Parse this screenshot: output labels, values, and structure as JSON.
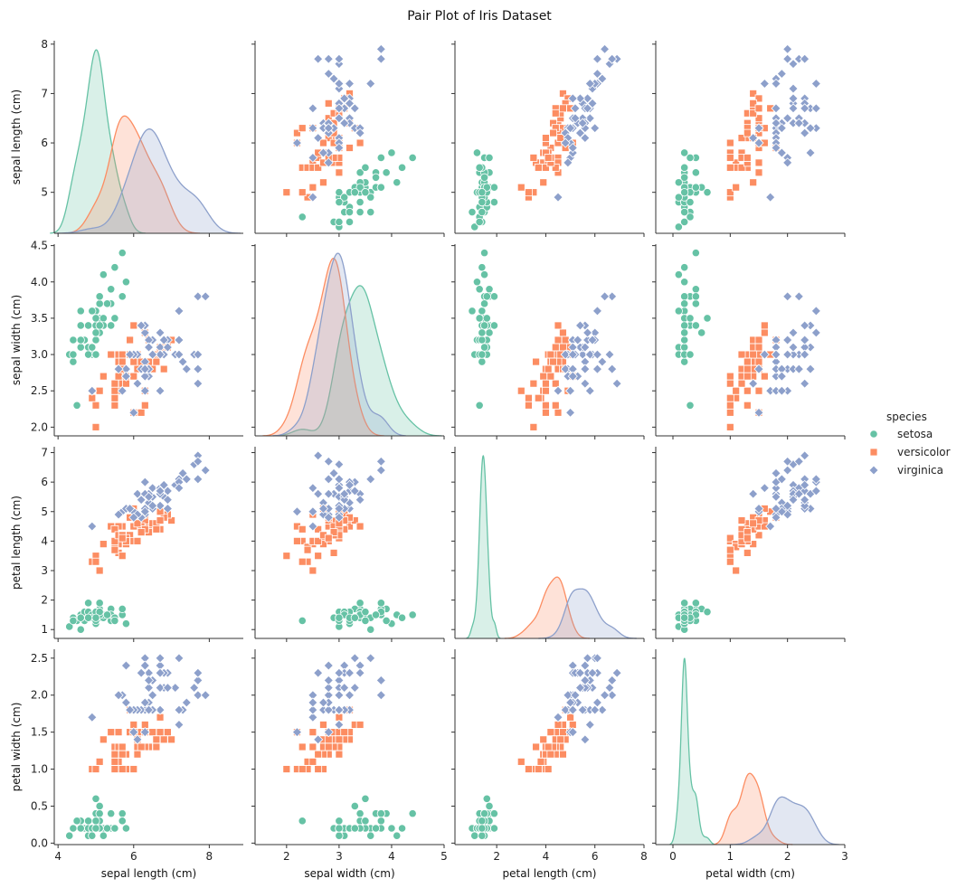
{
  "chart_data": {
    "type": "scatter",
    "title": "Pair Plot of Iris Dataset",
    "variables": [
      "sepal length (cm)",
      "sepal width (cm)",
      "petal length (cm)",
      "petal width (cm)"
    ],
    "diagonal": "kde",
    "hue": "species",
    "legend": {
      "title": "species",
      "placement": "right",
      "entries": [
        "setosa",
        "versicolor",
        "virginica"
      ]
    },
    "colors": {
      "setosa": "#66c2a5",
      "versicolor": "#fc8d62",
      "virginica": "#8da0cb"
    },
    "markers": {
      "setosa": "circle",
      "versicolor": "square",
      "virginica": "diamond"
    },
    "axes": [
      {
        "name": "sepal length (cm)",
        "lim": [
          3.9,
          8.9
        ],
        "ticks": [
          4,
          6,
          8
        ],
        "row_ticks": [
          5,
          6,
          7,
          8
        ]
      },
      {
        "name": "sepal width (cm)",
        "lim": [
          1.4,
          5.0
        ],
        "ticks": [
          2,
          3,
          4,
          5
        ],
        "row_ticks": [
          2.0,
          2.5,
          3.0,
          3.5,
          4.0,
          4.5
        ]
      },
      {
        "name": "petal length (cm)",
        "lim": [
          0.3,
          8.0
        ],
        "ticks": [
          2,
          4,
          6,
          8
        ],
        "row_ticks": [
          1,
          2,
          3,
          4,
          5,
          6,
          7
        ]
      },
      {
        "name": "petal width (cm)",
        "lim": [
          -0.3,
          3.0
        ],
        "ticks": [
          0,
          1,
          2,
          3
        ],
        "row_ticks": [
          0.0,
          0.5,
          1.0,
          1.5,
          2.0,
          2.5
        ]
      }
    ],
    "row_ylims": [
      [
        4.17,
        8.07
      ],
      [
        1.88,
        4.52
      ],
      [
        0.7,
        7.2
      ],
      [
        -0.02,
        2.62
      ]
    ],
    "series": [
      {
        "name": "setosa",
        "points": [
          [
            5.1,
            3.5,
            1.4,
            0.2
          ],
          [
            4.9,
            3.0,
            1.4,
            0.2
          ],
          [
            4.7,
            3.2,
            1.3,
            0.2
          ],
          [
            4.6,
            3.1,
            1.5,
            0.2
          ],
          [
            5.0,
            3.6,
            1.4,
            0.2
          ],
          [
            5.4,
            3.9,
            1.7,
            0.4
          ],
          [
            4.6,
            3.4,
            1.4,
            0.3
          ],
          [
            5.0,
            3.4,
            1.5,
            0.2
          ],
          [
            4.4,
            2.9,
            1.4,
            0.2
          ],
          [
            4.9,
            3.1,
            1.5,
            0.1
          ],
          [
            5.4,
            3.7,
            1.5,
            0.2
          ],
          [
            4.8,
            3.4,
            1.6,
            0.2
          ],
          [
            4.8,
            3.0,
            1.4,
            0.1
          ],
          [
            4.3,
            3.0,
            1.1,
            0.1
          ],
          [
            5.8,
            4.0,
            1.2,
            0.2
          ],
          [
            5.7,
            4.4,
            1.5,
            0.4
          ],
          [
            5.4,
            3.9,
            1.3,
            0.4
          ],
          [
            5.1,
            3.5,
            1.4,
            0.3
          ],
          [
            5.7,
            3.8,
            1.7,
            0.3
          ],
          [
            5.1,
            3.8,
            1.5,
            0.3
          ],
          [
            5.4,
            3.4,
            1.7,
            0.2
          ],
          [
            5.1,
            3.7,
            1.5,
            0.4
          ],
          [
            4.6,
            3.6,
            1.0,
            0.2
          ],
          [
            5.1,
            3.3,
            1.7,
            0.5
          ],
          [
            4.8,
            3.4,
            1.9,
            0.2
          ],
          [
            5.0,
            3.0,
            1.6,
            0.2
          ],
          [
            5.0,
            3.4,
            1.6,
            0.4
          ],
          [
            5.2,
            3.5,
            1.5,
            0.2
          ],
          [
            5.2,
            3.4,
            1.4,
            0.2
          ],
          [
            4.7,
            3.2,
            1.6,
            0.2
          ],
          [
            4.8,
            3.1,
            1.6,
            0.2
          ],
          [
            5.4,
            3.4,
            1.5,
            0.4
          ],
          [
            5.2,
            4.1,
            1.5,
            0.1
          ],
          [
            5.5,
            4.2,
            1.4,
            0.2
          ],
          [
            4.9,
            3.1,
            1.5,
            0.2
          ],
          [
            5.0,
            3.2,
            1.2,
            0.2
          ],
          [
            5.5,
            3.5,
            1.3,
            0.2
          ],
          [
            4.9,
            3.6,
            1.4,
            0.1
          ],
          [
            4.4,
            3.0,
            1.3,
            0.2
          ],
          [
            5.1,
            3.4,
            1.5,
            0.2
          ],
          [
            5.0,
            3.5,
            1.3,
            0.3
          ],
          [
            4.5,
            2.3,
            1.3,
            0.3
          ],
          [
            4.4,
            3.2,
            1.3,
            0.2
          ],
          [
            5.0,
            3.5,
            1.6,
            0.6
          ],
          [
            5.1,
            3.8,
            1.9,
            0.4
          ],
          [
            4.8,
            3.0,
            1.4,
            0.3
          ],
          [
            5.1,
            3.8,
            1.6,
            0.2
          ],
          [
            4.6,
            3.2,
            1.4,
            0.2
          ],
          [
            5.3,
            3.7,
            1.5,
            0.2
          ],
          [
            5.0,
            3.3,
            1.4,
            0.2
          ]
        ]
      },
      {
        "name": "versicolor",
        "points": [
          [
            7.0,
            3.2,
            4.7,
            1.4
          ],
          [
            6.4,
            3.2,
            4.5,
            1.5
          ],
          [
            6.9,
            3.1,
            4.9,
            1.5
          ],
          [
            5.5,
            2.3,
            4.0,
            1.3
          ],
          [
            6.5,
            2.8,
            4.6,
            1.5
          ],
          [
            5.7,
            2.8,
            4.5,
            1.3
          ],
          [
            6.3,
            3.3,
            4.7,
            1.6
          ],
          [
            4.9,
            2.4,
            3.3,
            1.0
          ],
          [
            6.6,
            2.9,
            4.6,
            1.3
          ],
          [
            5.2,
            2.7,
            3.9,
            1.4
          ],
          [
            5.0,
            2.0,
            3.5,
            1.0
          ],
          [
            5.9,
            3.0,
            4.2,
            1.5
          ],
          [
            6.0,
            2.2,
            4.0,
            1.0
          ],
          [
            6.1,
            2.9,
            4.7,
            1.4
          ],
          [
            5.6,
            2.9,
            3.6,
            1.3
          ],
          [
            6.7,
            3.1,
            4.4,
            1.4
          ],
          [
            5.6,
            3.0,
            4.5,
            1.5
          ],
          [
            5.8,
            2.7,
            4.1,
            1.0
          ],
          [
            6.2,
            2.2,
            4.5,
            1.5
          ],
          [
            5.6,
            2.5,
            3.9,
            1.1
          ],
          [
            5.9,
            3.2,
            4.8,
            1.8
          ],
          [
            6.1,
            2.8,
            4.0,
            1.3
          ],
          [
            6.3,
            2.5,
            4.9,
            1.5
          ],
          [
            6.1,
            2.8,
            4.7,
            1.2
          ],
          [
            6.4,
            2.9,
            4.3,
            1.3
          ],
          [
            6.6,
            3.0,
            4.4,
            1.4
          ],
          [
            6.8,
            2.8,
            4.8,
            1.4
          ],
          [
            6.7,
            3.0,
            5.0,
            1.7
          ],
          [
            6.0,
            2.9,
            4.5,
            1.5
          ],
          [
            5.7,
            2.6,
            3.5,
            1.0
          ],
          [
            5.5,
            2.4,
            3.8,
            1.1
          ],
          [
            5.5,
            2.4,
            3.7,
            1.0
          ],
          [
            5.8,
            2.7,
            3.9,
            1.2
          ],
          [
            6.0,
            2.7,
            5.1,
            1.6
          ],
          [
            5.4,
            3.0,
            4.5,
            1.5
          ],
          [
            6.0,
            3.4,
            4.5,
            1.6
          ],
          [
            6.7,
            3.1,
            4.7,
            1.5
          ],
          [
            6.3,
            2.3,
            4.4,
            1.3
          ],
          [
            5.6,
            3.0,
            4.1,
            1.3
          ],
          [
            5.5,
            2.5,
            4.0,
            1.3
          ],
          [
            5.5,
            2.6,
            4.4,
            1.2
          ],
          [
            6.1,
            3.0,
            4.6,
            1.4
          ],
          [
            5.8,
            2.6,
            4.0,
            1.2
          ],
          [
            5.0,
            2.3,
            3.3,
            1.0
          ],
          [
            5.6,
            2.7,
            4.2,
            1.3
          ],
          [
            5.7,
            3.0,
            4.2,
            1.2
          ],
          [
            5.7,
            2.9,
            4.2,
            1.3
          ],
          [
            6.2,
            2.9,
            4.3,
            1.3
          ],
          [
            5.1,
            2.5,
            3.0,
            1.1
          ],
          [
            5.7,
            2.8,
            4.1,
            1.3
          ]
        ]
      },
      {
        "name": "virginica",
        "points": [
          [
            6.3,
            3.3,
            6.0,
            2.5
          ],
          [
            5.8,
            2.7,
            5.1,
            1.9
          ],
          [
            7.1,
            3.0,
            5.9,
            2.1
          ],
          [
            6.3,
            2.9,
            5.6,
            1.8
          ],
          [
            6.5,
            3.0,
            5.8,
            2.2
          ],
          [
            7.6,
            3.0,
            6.6,
            2.1
          ],
          [
            4.9,
            2.5,
            4.5,
            1.7
          ],
          [
            7.3,
            2.9,
            6.3,
            1.8
          ],
          [
            6.7,
            2.5,
            5.8,
            1.8
          ],
          [
            7.2,
            3.6,
            6.1,
            2.5
          ],
          [
            6.5,
            3.2,
            5.1,
            2.0
          ],
          [
            6.4,
            2.7,
            5.3,
            1.9
          ],
          [
            6.8,
            3.0,
            5.5,
            2.1
          ],
          [
            5.7,
            2.5,
            5.0,
            2.0
          ],
          [
            5.8,
            2.8,
            5.1,
            2.4
          ],
          [
            6.4,
            3.2,
            5.3,
            2.3
          ],
          [
            6.5,
            3.0,
            5.5,
            1.8
          ],
          [
            7.7,
            3.8,
            6.7,
            2.2
          ],
          [
            7.7,
            2.6,
            6.9,
            2.3
          ],
          [
            6.0,
            2.2,
            5.0,
            1.5
          ],
          [
            6.9,
            3.2,
            5.7,
            2.3
          ],
          [
            5.6,
            2.8,
            4.9,
            2.0
          ],
          [
            7.7,
            2.8,
            6.7,
            2.0
          ],
          [
            6.3,
            2.7,
            4.9,
            1.8
          ],
          [
            6.7,
            3.3,
            5.7,
            2.1
          ],
          [
            7.2,
            3.2,
            6.0,
            1.8
          ],
          [
            6.2,
            2.8,
            4.8,
            1.8
          ],
          [
            6.1,
            3.0,
            4.9,
            1.8
          ],
          [
            6.4,
            2.8,
            5.6,
            2.1
          ],
          [
            7.2,
            3.0,
            5.8,
            1.6
          ],
          [
            7.4,
            2.8,
            6.1,
            1.9
          ],
          [
            7.9,
            3.8,
            6.4,
            2.0
          ],
          [
            6.4,
            2.8,
            5.6,
            2.2
          ],
          [
            6.3,
            2.8,
            5.1,
            1.5
          ],
          [
            6.1,
            2.6,
            5.6,
            1.4
          ],
          [
            7.7,
            3.0,
            6.1,
            2.3
          ],
          [
            6.3,
            3.4,
            5.6,
            2.4
          ],
          [
            6.4,
            3.1,
            5.5,
            1.8
          ],
          [
            6.0,
            3.0,
            4.8,
            1.8
          ],
          [
            6.9,
            3.1,
            5.4,
            2.1
          ],
          [
            6.7,
            3.1,
            5.6,
            2.4
          ],
          [
            6.9,
            3.1,
            5.1,
            2.3
          ],
          [
            5.8,
            2.7,
            5.1,
            1.9
          ],
          [
            6.8,
            3.2,
            5.9,
            2.3
          ],
          [
            6.7,
            3.3,
            5.7,
            2.5
          ],
          [
            6.7,
            3.0,
            5.2,
            2.3
          ],
          [
            6.3,
            2.5,
            5.0,
            1.9
          ],
          [
            6.5,
            3.0,
            5.2,
            2.0
          ],
          [
            6.2,
            3.4,
            5.4,
            2.3
          ],
          [
            5.9,
            3.0,
            5.1,
            1.8
          ]
        ]
      }
    ]
  }
}
